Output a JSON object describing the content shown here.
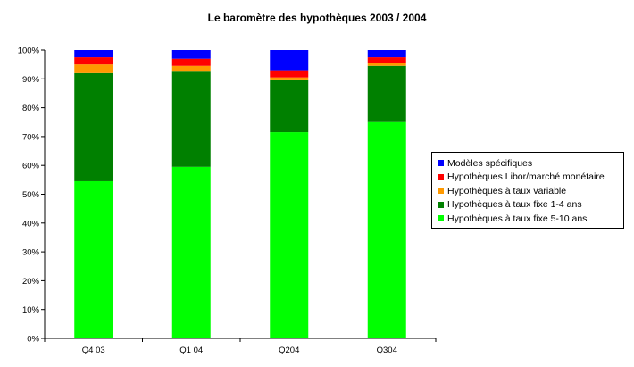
{
  "chart_data": {
    "type": "bar",
    "stacked": true,
    "percent": true,
    "title": "Le baromètre des hypothèques 2003 / 2004",
    "xlabel": "",
    "ylabel": "",
    "ylim": [
      0,
      100
    ],
    "yticks": [
      "0%",
      "10%",
      "20%",
      "30%",
      "40%",
      "50%",
      "60%",
      "70%",
      "80%",
      "90%",
      "100%"
    ],
    "categories": [
      "Q4 03",
      "Q1 04",
      "Q204",
      "Q304"
    ],
    "series": [
      {
        "name": "Hypothèques à taux fixe 5-10 ans",
        "color": "#00ff00",
        "values": [
          54.5,
          59.5,
          71.5,
          75
        ]
      },
      {
        "name": "Hypothèques à taux fixe 1-4 ans",
        "color": "#008000",
        "values": [
          37.5,
          33,
          18,
          19.5
        ]
      },
      {
        "name": "Hypothèques à taux variable",
        "color": "#ff9900",
        "values": [
          3,
          2,
          1,
          1
        ]
      },
      {
        "name": "Hypothèques Libor/marché monétaire",
        "color": "#ff0000",
        "values": [
          2.5,
          2.5,
          2.5,
          2
        ]
      },
      {
        "name": "Modèles spécifiques",
        "color": "#0000ff",
        "values": [
          2.5,
          3,
          7,
          2.5
        ]
      }
    ],
    "legend_position": "right",
    "grid": false
  }
}
